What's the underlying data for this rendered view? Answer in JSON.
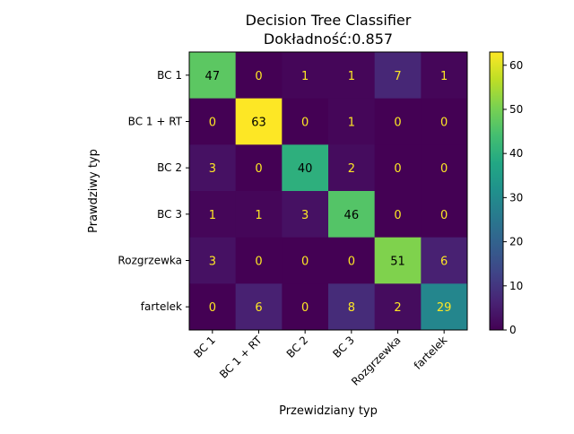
{
  "chart_data": {
    "type": "heatmap",
    "title": "Decision Tree Classifier",
    "subtitle": "Dokładność:0.857",
    "xlabel": "Przewidziany typ",
    "ylabel": "Prawdziwy typ",
    "categories": [
      "BC 1",
      "BC 1 + RT",
      "BC 2",
      "BC 3",
      "Rozgrzewka",
      "fartelek"
    ],
    "matrix": [
      [
        47,
        0,
        1,
        1,
        7,
        1
      ],
      [
        0,
        63,
        0,
        1,
        0,
        0
      ],
      [
        3,
        0,
        40,
        2,
        0,
        0
      ],
      [
        1,
        1,
        3,
        46,
        0,
        0
      ],
      [
        3,
        0,
        0,
        0,
        51,
        6
      ],
      [
        0,
        6,
        0,
        8,
        2,
        29
      ]
    ],
    "colormap": "viridis",
    "value_range": [
      0,
      63
    ],
    "colorbar_ticks": [
      0,
      10,
      20,
      30,
      40,
      50,
      60
    ],
    "grid": false
  }
}
